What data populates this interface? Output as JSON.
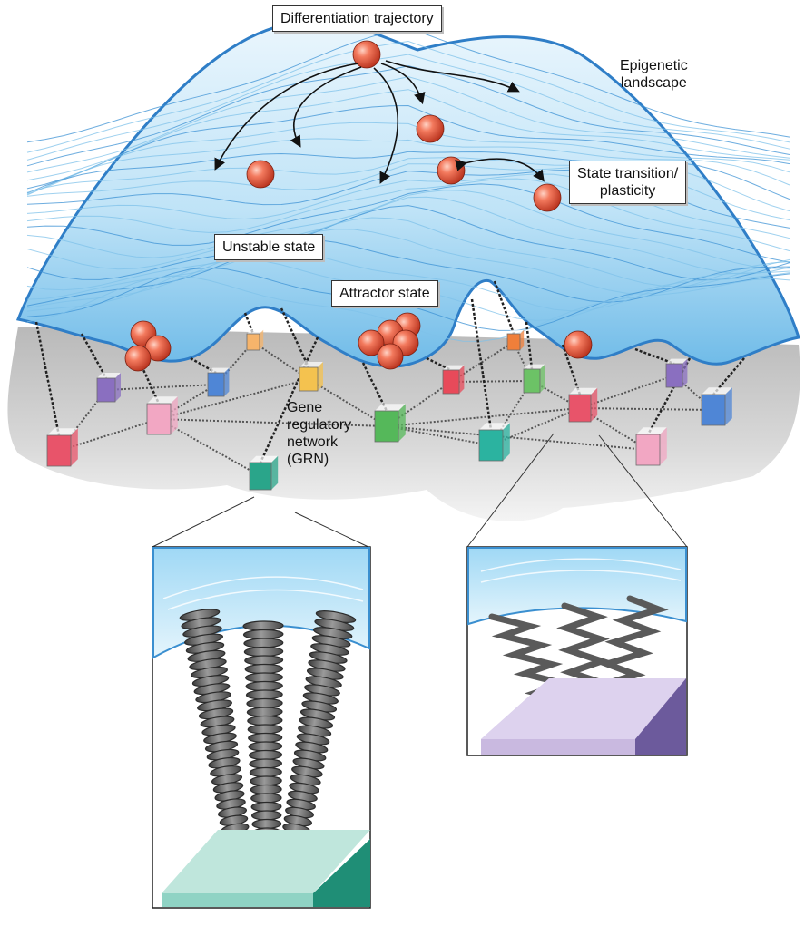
{
  "labels": {
    "differentiation_trajectory": "Differentiation trajectory",
    "epigenetic_landscape_line1": "Epigenetic",
    "epigenetic_landscape_line2": "landscape",
    "state_transition_line1": "State transition/",
    "state_transition_line2": "plasticity",
    "unstable_state": "Unstable state",
    "attractor_state": "Attractor state",
    "grn_line1": "Gene",
    "grn_line2": "regulatory",
    "grn_line3": "network",
    "grn_line4": "(GRN)"
  },
  "colors": {
    "landscape_blue": "#4aa8e0",
    "landscape_light": "#d9effa",
    "ball_red": "#e8553f",
    "base_gray": "#cfcfcf",
    "teal_platform": "#2a9d86",
    "purple_platform": "#7a6aa8"
  },
  "node_colors": [
    "#e8546a",
    "#8a6fc0",
    "#f2a7c3",
    "#4f86d6",
    "#f6b46b",
    "#f4c24f",
    "#2aa58a",
    "#55b85a",
    "#e84a5a",
    "#2bb3a0",
    "#f07f3a",
    "#6cc266"
  ]
}
